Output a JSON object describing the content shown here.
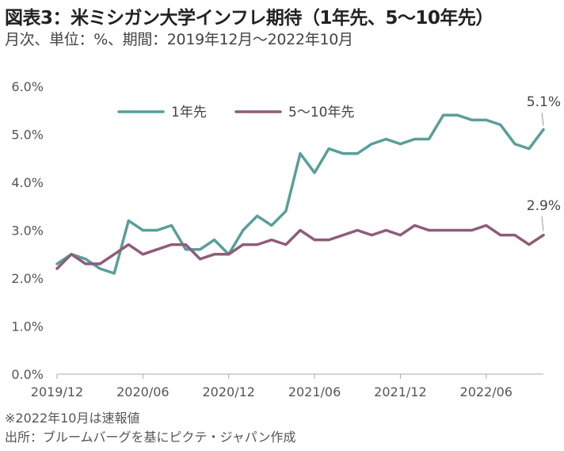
{
  "title": "図表3：米ミシガン大学インフレ期待（1年先、5～10年先）",
  "subtitle": "月次、単位：%、期間：2019年12月～2022年10月",
  "notes": [
    "※2022年10月は速報値",
    "出所：ブルームバーグを基にピクテ・ジャパン作成"
  ],
  "colors": {
    "series_1y": "#5a9e9a",
    "series_5_10y": "#8e5c7a",
    "axis": "#aaaaaa"
  },
  "chart_data": {
    "type": "line",
    "x": [
      "2019/12",
      "2020/01",
      "2020/02",
      "2020/03",
      "2020/04",
      "2020/05",
      "2020/06",
      "2020/07",
      "2020/08",
      "2020/09",
      "2020/10",
      "2020/11",
      "2020/12",
      "2021/01",
      "2021/02",
      "2021/03",
      "2021/04",
      "2021/05",
      "2021/06",
      "2021/07",
      "2021/08",
      "2021/09",
      "2021/10",
      "2021/11",
      "2021/12",
      "2022/01",
      "2022/02",
      "2022/03",
      "2022/04",
      "2022/05",
      "2022/06",
      "2022/07",
      "2022/08",
      "2022/09",
      "2022/10"
    ],
    "x_tick_labels": [
      "2019/12",
      "2020/06",
      "2020/12",
      "2021/06",
      "2021/12",
      "2022/06"
    ],
    "x_tick_indices": [
      0,
      6,
      12,
      18,
      24,
      30
    ],
    "ylim": [
      0,
      6
    ],
    "y_tick_values": [
      0,
      1,
      2,
      3,
      4,
      5,
      6
    ],
    "y_tick_labels": [
      "0.0%",
      "1.0%",
      "2.0%",
      "3.0%",
      "4.0%",
      "5.0%",
      "6.0%"
    ],
    "legend_position": "top",
    "series": [
      {
        "name": "1年先",
        "color": "#5a9e9a",
        "values": [
          2.3,
          2.5,
          2.4,
          2.2,
          2.1,
          3.2,
          3.0,
          3.0,
          3.1,
          2.6,
          2.6,
          2.8,
          2.5,
          3.0,
          3.3,
          3.1,
          3.4,
          4.6,
          4.2,
          4.7,
          4.6,
          4.6,
          4.8,
          4.9,
          4.8,
          4.9,
          4.9,
          5.4,
          5.4,
          5.3,
          5.3,
          5.2,
          4.8,
          4.7,
          5.1
        ],
        "end_label": "5.1%"
      },
      {
        "name": "5～10年先",
        "color": "#8e5c7a",
        "values": [
          2.2,
          2.5,
          2.3,
          2.3,
          2.5,
          2.7,
          2.5,
          2.6,
          2.7,
          2.7,
          2.4,
          2.5,
          2.5,
          2.7,
          2.7,
          2.8,
          2.7,
          3.0,
          2.8,
          2.8,
          2.9,
          3.0,
          2.9,
          3.0,
          2.9,
          3.1,
          3.0,
          3.0,
          3.0,
          3.0,
          3.1,
          2.9,
          2.9,
          2.7,
          2.9
        ],
        "end_label": "2.9%"
      }
    ]
  }
}
